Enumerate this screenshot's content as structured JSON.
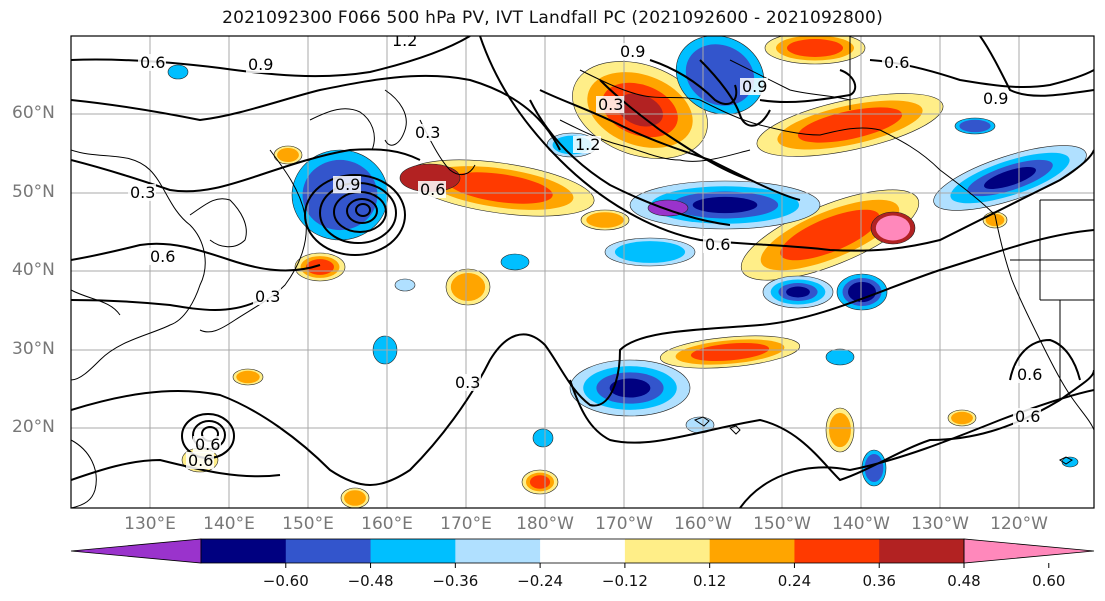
{
  "title": "2021092300 F066 500 hPa PV, IVT Landfall PC (2021092600 - 2021092800)",
  "map": {
    "lat_labels": [
      "60°N",
      "50°N",
      "40°N",
      "30°N",
      "20°N"
    ],
    "lon_labels": [
      "130°E",
      "140°E",
      "150°E",
      "160°E",
      "170°E",
      "180°W",
      "170°W",
      "160°W",
      "150°W",
      "140°W",
      "130°W",
      "120°W"
    ],
    "contour_labels": [
      "0.6",
      "0.9",
      "1.2",
      "0.3",
      "0.6",
      "0.3",
      "0.9",
      "0.6",
      "0.3",
      "0.6",
      "0.6",
      "0.9",
      "1.2",
      "0.6",
      "0.3",
      "0.6",
      "0.9",
      "0.6",
      "0.9",
      "0.6",
      "0.3"
    ],
    "field_colors": {
      "neg_strong": "#9a33cc",
      "neg_1": "#000080",
      "neg_2": "#3355cc",
      "neg_3": "#00bfff",
      "neg_4": "#b0e0ff",
      "pos_1": "#ffee88",
      "pos_2": "#ffa500",
      "pos_3": "#ff3a00",
      "pos_4": "#b22222",
      "pos_strong": "#ff88bb"
    }
  },
  "colorbar": {
    "colors": [
      "#9a33cc",
      "#000080",
      "#3355cc",
      "#00bfff",
      "#b0e0ff",
      "#ffffff",
      "#ffee88",
      "#ffa500",
      "#ff3a00",
      "#b22222",
      "#ff88bb"
    ],
    "labels": [
      "−0.60",
      "−0.48",
      "−0.36",
      "−0.24",
      "−0.12",
      "0.12",
      "0.24",
      "0.36",
      "0.48",
      "0.60"
    ]
  }
}
